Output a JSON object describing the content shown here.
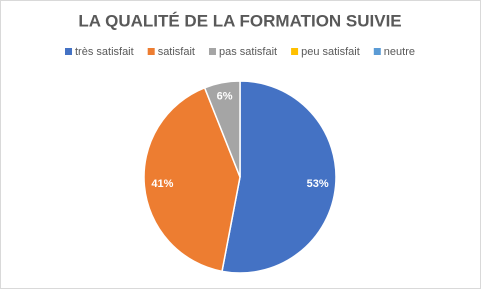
{
  "chart_data": {
    "type": "pie",
    "title": "LA QUALITÉ DE LA FORMATION SUIVIE",
    "categories": [
      "très satisfait",
      "satisfait",
      "pas satisfait",
      "peu satisfait",
      "neutre"
    ],
    "values": [
      53,
      41,
      6,
      0,
      0
    ],
    "value_labels": [
      "53%",
      "41%",
      "6%",
      null,
      null
    ],
    "colors": [
      "#4472c4",
      "#ed7d31",
      "#a5a5a5",
      "#ffc000",
      "#5b9bd5"
    ],
    "legend": "top"
  }
}
